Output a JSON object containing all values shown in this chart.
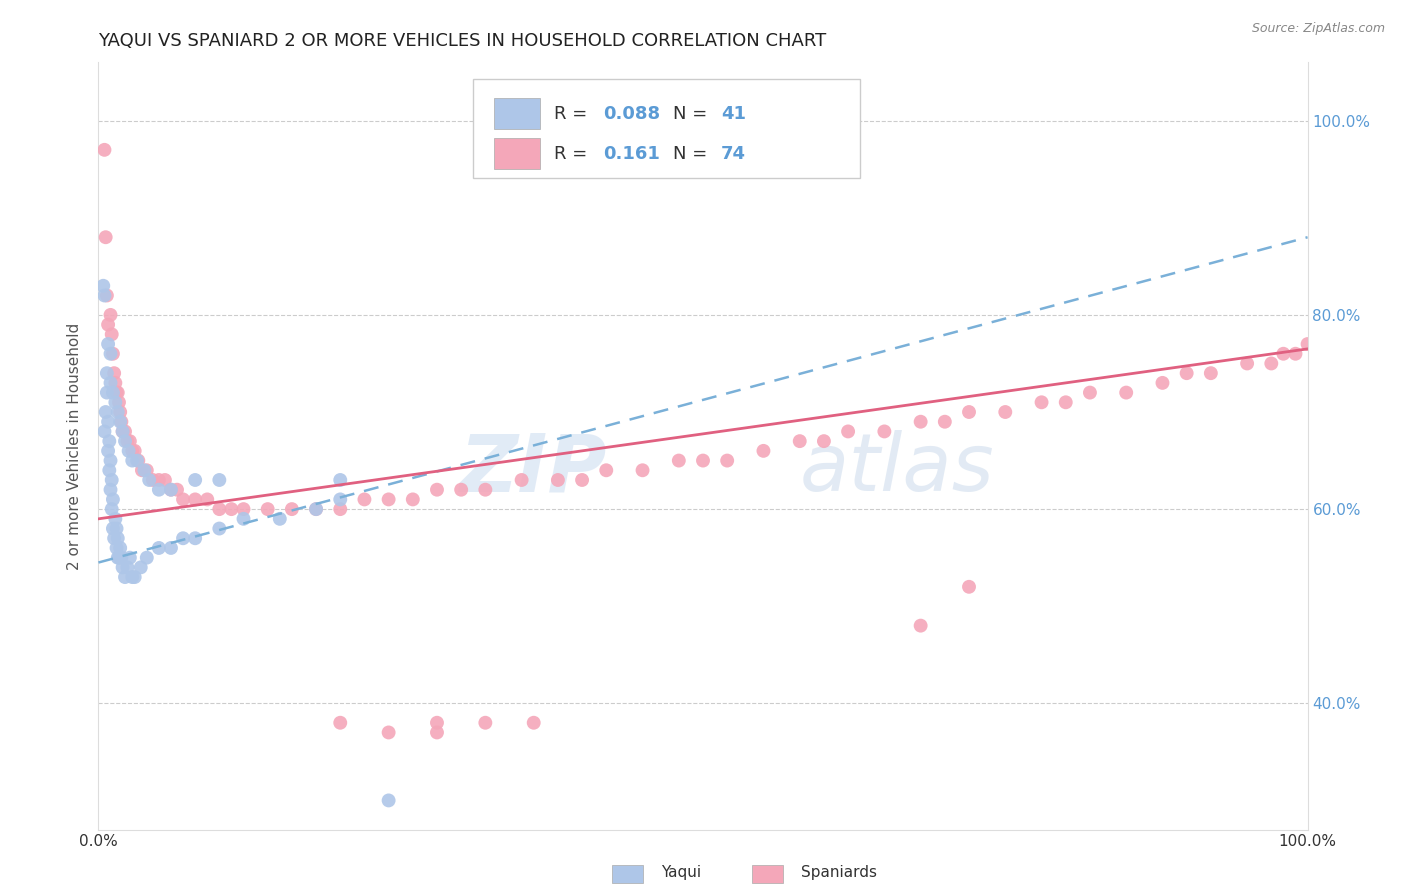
{
  "title": "YAQUI VS SPANIARD 2 OR MORE VEHICLES IN HOUSEHOLD CORRELATION CHART",
  "source": "Source: ZipAtlas.com",
  "ylabel": "2 or more Vehicles in Household",
  "yaqui_R": 0.088,
  "yaqui_N": 41,
  "spaniard_R": 0.161,
  "spaniard_N": 74,
  "yaqui_color": "#aec6e8",
  "spaniard_color": "#f4a7b9",
  "yaqui_line_color": "#7ab0d8",
  "spaniard_line_color": "#e06080",
  "xlim": [
    0.0,
    1.0
  ],
  "ylim": [
    0.27,
    1.06
  ],
  "yticks": [
    0.4,
    0.6,
    0.8,
    1.0
  ],
  "ytick_labels": [
    "40.0%",
    "60.0%",
    "80.0%",
    "100.0%"
  ],
  "watermark_zip": "ZIP",
  "watermark_atlas": "atlas",
  "background_color": "#ffffff",
  "yaqui_x": [
    0.005,
    0.006,
    0.007,
    0.007,
    0.008,
    0.008,
    0.009,
    0.009,
    0.01,
    0.01,
    0.011,
    0.011,
    0.012,
    0.012,
    0.013,
    0.014,
    0.015,
    0.015,
    0.016,
    0.016,
    0.017,
    0.018,
    0.019,
    0.02,
    0.022,
    0.024,
    0.026,
    0.028,
    0.03,
    0.035,
    0.04,
    0.05,
    0.06,
    0.07,
    0.08,
    0.1,
    0.12,
    0.15,
    0.18,
    0.2,
    0.24
  ],
  "yaqui_y": [
    0.68,
    0.7,
    0.72,
    0.74,
    0.66,
    0.69,
    0.64,
    0.67,
    0.62,
    0.65,
    0.6,
    0.63,
    0.58,
    0.61,
    0.57,
    0.59,
    0.56,
    0.58,
    0.55,
    0.57,
    0.55,
    0.56,
    0.55,
    0.54,
    0.53,
    0.54,
    0.55,
    0.53,
    0.53,
    0.54,
    0.55,
    0.56,
    0.56,
    0.57,
    0.57,
    0.58,
    0.59,
    0.59,
    0.6,
    0.61,
    0.3
  ],
  "yaqui_extra_x": [
    0.004,
    0.005,
    0.008,
    0.01,
    0.01,
    0.012,
    0.014,
    0.016,
    0.018,
    0.02,
    0.022,
    0.025,
    0.028,
    0.032,
    0.038,
    0.042,
    0.05,
    0.06,
    0.08,
    0.1,
    0.2
  ],
  "yaqui_extra_y": [
    0.83,
    0.82,
    0.77,
    0.76,
    0.73,
    0.72,
    0.71,
    0.7,
    0.69,
    0.68,
    0.67,
    0.66,
    0.65,
    0.65,
    0.64,
    0.63,
    0.62,
    0.62,
    0.63,
    0.63,
    0.63
  ],
  "spaniard_x": [
    0.005,
    0.006,
    0.007,
    0.008,
    0.01,
    0.011,
    0.012,
    0.013,
    0.014,
    0.015,
    0.016,
    0.017,
    0.018,
    0.019,
    0.02,
    0.022,
    0.024,
    0.026,
    0.028,
    0.03,
    0.033,
    0.036,
    0.04,
    0.045,
    0.05,
    0.055,
    0.06,
    0.065,
    0.07,
    0.08,
    0.09,
    0.1,
    0.11,
    0.12,
    0.14,
    0.16,
    0.18,
    0.2,
    0.22,
    0.24,
    0.26,
    0.28,
    0.3,
    0.32,
    0.35,
    0.38,
    0.4,
    0.42,
    0.45,
    0.48,
    0.5,
    0.52,
    0.55,
    0.58,
    0.6,
    0.62,
    0.65,
    0.68,
    0.7,
    0.72,
    0.75,
    0.78,
    0.8,
    0.82,
    0.85,
    0.88,
    0.9,
    0.92,
    0.95,
    0.97,
    0.98,
    0.99,
    1.0,
    0.28
  ],
  "spaniard_y": [
    0.97,
    0.88,
    0.82,
    0.79,
    0.8,
    0.78,
    0.76,
    0.74,
    0.73,
    0.72,
    0.72,
    0.71,
    0.7,
    0.69,
    0.68,
    0.68,
    0.67,
    0.67,
    0.66,
    0.66,
    0.65,
    0.64,
    0.64,
    0.63,
    0.63,
    0.63,
    0.62,
    0.62,
    0.61,
    0.61,
    0.61,
    0.6,
    0.6,
    0.6,
    0.6,
    0.6,
    0.6,
    0.6,
    0.61,
    0.61,
    0.61,
    0.62,
    0.62,
    0.62,
    0.63,
    0.63,
    0.63,
    0.64,
    0.64,
    0.65,
    0.65,
    0.65,
    0.66,
    0.67,
    0.67,
    0.68,
    0.68,
    0.69,
    0.69,
    0.7,
    0.7,
    0.71,
    0.71,
    0.72,
    0.72,
    0.73,
    0.74,
    0.74,
    0.75,
    0.75,
    0.76,
    0.76,
    0.77,
    0.38
  ],
  "spaniard_extra_x": [
    0.2,
    0.24,
    0.28,
    0.32,
    0.36,
    0.68,
    0.72
  ],
  "spaniard_extra_y": [
    0.38,
    0.37,
    0.37,
    0.38,
    0.38,
    0.48,
    0.52
  ]
}
